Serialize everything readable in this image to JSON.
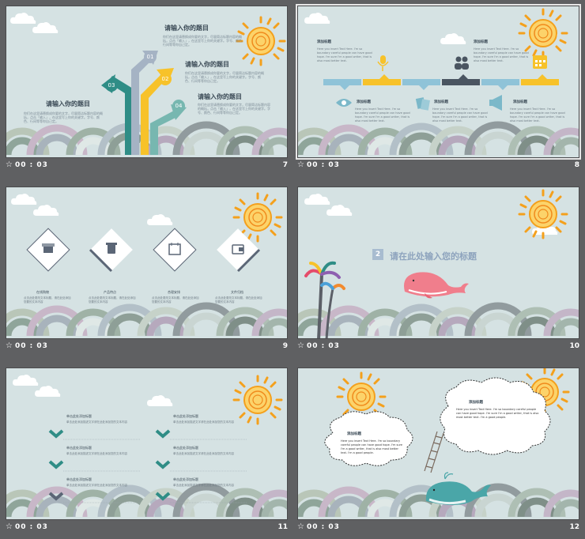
{
  "slides": [
    {
      "number": "7",
      "time": "00 : 03",
      "headings": [
        "请输入你的题目",
        "请输入你的题目",
        "请输入你的题目",
        "请输入你的题目"
      ],
      "body": "你们在这里请替换成你要的文字，尽量简洁标题内容的概括，点击「输入」，在这里写上你的关键字。字号、颜色、行间等等你自己定。",
      "arrow_numbers": [
        "01",
        "02",
        "03",
        "04"
      ]
    },
    {
      "number": "8",
      "time": "00 : 03",
      "item_title": "添加标题",
      "item_text": "Here you insert Text Here. I'm so boundary careful people can have good hope. I'm sure I'm a good writer, that is also most better text."
    },
    {
      "number": "9",
      "time": "00 : 03",
      "labels": [
        "在线购物",
        "产品特点",
        "合理安排",
        "文件归档"
      ],
      "body": "点击此处更改文本标题，请在此处添加您要的文本内容"
    },
    {
      "number": "10",
      "time": "00 : 03",
      "section_number": "2",
      "section_title": "请在此处输入您的标题"
    },
    {
      "number": "11",
      "time": "00 : 03",
      "row_title": "单击此处添加标题",
      "row_text": "单击此处添加描述文字请在此处添加您的文本内容"
    },
    {
      "number": "12",
      "time": "00 : 03",
      "cloud_title": "添加标题",
      "cloud_text": "Here you insert Text Here. I'm so boundary careful people can have good hope. I'm sure I'm a good writer, that is also most better text. I'm a good people."
    }
  ],
  "colors": {
    "teal": "#2f8d86",
    "gray_blue": "#a5b3c4",
    "yellow": "#f7c22a",
    "sea": "#77b7b0",
    "sun": "#f4a01c",
    "bar_blue": "#8fc3d8",
    "bar_yellow": "#f7c22a",
    "bar_dark": "#4a5561",
    "bg": "#d5e2e3"
  },
  "icons": [
    "star-icon",
    "sun-icon",
    "cloud-icon",
    "microphone-icon",
    "people-icon",
    "calendar-icon",
    "eye-icon",
    "cards-icon",
    "megaphone-icon",
    "shop-icon",
    "cup-icon",
    "wallet-icon",
    "whale-icon",
    "palm-tree-icon",
    "chevron-down-icon"
  ]
}
